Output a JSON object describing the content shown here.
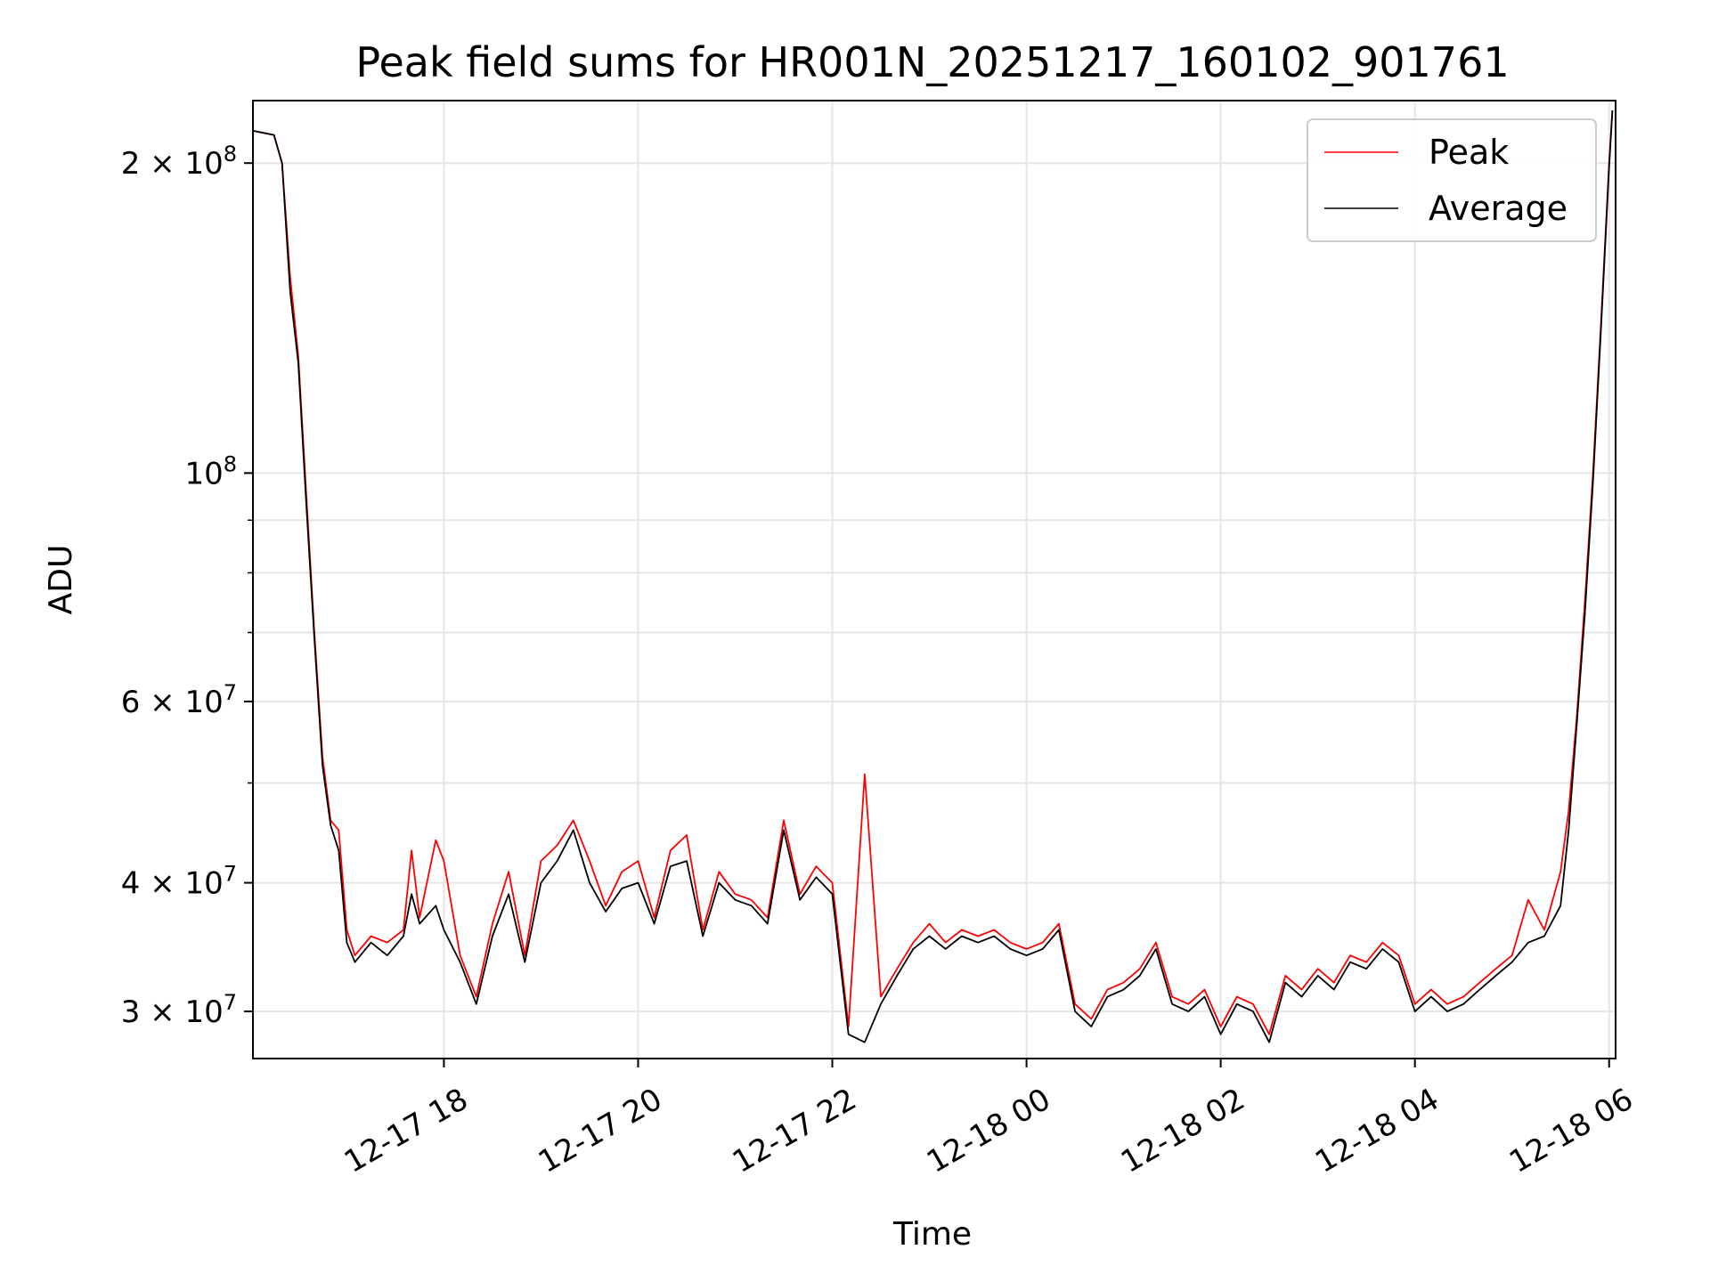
{
  "chart_data": {
    "type": "line",
    "title": "Peak field sums for HR001N_20251217_160102_901761",
    "xlabel": "Time",
    "ylabel": "ADU",
    "yscale": "log",
    "ylim": [
      27000000,
      230000000
    ],
    "xlim": [
      "12-17 16:02",
      "12-18 06:04"
    ],
    "grid": true,
    "legend": {
      "placement": "upper right",
      "entries": [
        "Peak",
        "Average"
      ]
    },
    "x_ticks": [
      {
        "value": "12-17 18:00",
        "label": "12-17 18"
      },
      {
        "value": "12-17 20:00",
        "label": "12-17 20"
      },
      {
        "value": "12-17 22:00",
        "label": "12-17 22"
      },
      {
        "value": "12-18 00:00",
        "label": "12-18 00"
      },
      {
        "value": "12-18 02:00",
        "label": "12-18 02"
      },
      {
        "value": "12-18 04:00",
        "label": "12-18 04"
      },
      {
        "value": "12-18 06:00",
        "label": "12-18 06"
      }
    ],
    "y_ticks": [
      {
        "value": 30000000,
        "label": "3 × 10⁷",
        "base": "3 × 10",
        "exp": "7"
      },
      {
        "value": 40000000,
        "label": "4 × 10⁷",
        "base": "4 × 10",
        "exp": "7"
      },
      {
        "value": 60000000,
        "label": "6 × 10⁷",
        "base": "6 × 10",
        "exp": "7"
      },
      {
        "value": 100000000,
        "label": "10⁸",
        "base": "10",
        "exp": "8"
      },
      {
        "value": 200000000,
        "label": "2 × 10⁸",
        "base": "2 × 10",
        "exp": "8"
      }
    ],
    "y_minor_ticks": [
      50000000,
      70000000,
      80000000,
      90000000
    ],
    "series": [
      {
        "name": "Peak",
        "color": "#ff0000",
        "points": [
          [
            "12-17 16:02",
            215000000
          ],
          [
            "12-17 16:15",
            213000000
          ],
          [
            "12-17 16:20",
            200000000
          ],
          [
            "12-17 16:25",
            155000000
          ],
          [
            "12-17 16:30",
            130000000
          ],
          [
            "12-17 16:35",
            95000000
          ],
          [
            "12-17 16:40",
            70000000
          ],
          [
            "12-17 16:45",
            53000000
          ],
          [
            "12-17 16:50",
            46000000
          ],
          [
            "12-17 16:55",
            45000000
          ],
          [
            "12-17 17:00",
            36000000
          ],
          [
            "12-17 17:05",
            34000000
          ],
          [
            "12-17 17:15",
            35500000
          ],
          [
            "12-17 17:25",
            35000000
          ],
          [
            "12-17 17:35",
            36000000
          ],
          [
            "12-17 17:40",
            43000000
          ],
          [
            "12-17 17:45",
            37000000
          ],
          [
            "12-17 17:55",
            44000000
          ],
          [
            "12-17 18:00",
            42000000
          ],
          [
            "12-17 18:10",
            34000000
          ],
          [
            "12-17 18:20",
            31000000
          ],
          [
            "12-17 18:30",
            36500000
          ],
          [
            "12-17 18:40",
            41000000
          ],
          [
            "12-17 18:50",
            34000000
          ],
          [
            "12-17 19:00",
            42000000
          ],
          [
            "12-17 19:10",
            43500000
          ],
          [
            "12-17 19:20",
            46000000
          ],
          [
            "12-17 19:30",
            42000000
          ],
          [
            "12-17 19:40",
            38000000
          ],
          [
            "12-17 19:50",
            41000000
          ],
          [
            "12-17 20:00",
            42000000
          ],
          [
            "12-17 20:10",
            37000000
          ],
          [
            "12-17 20:20",
            43000000
          ],
          [
            "12-17 20:30",
            44500000
          ],
          [
            "12-17 20:40",
            36000000
          ],
          [
            "12-17 20:50",
            41000000
          ],
          [
            "12-17 21:00",
            39000000
          ],
          [
            "12-17 21:10",
            38500000
          ],
          [
            "12-17 21:20",
            37000000
          ],
          [
            "12-17 21:30",
            46000000
          ],
          [
            "12-17 21:40",
            39000000
          ],
          [
            "12-17 21:50",
            41500000
          ],
          [
            "12-17 22:00",
            40000000
          ],
          [
            "12-17 22:10",
            29000000
          ],
          [
            "12-17 22:20",
            51000000
          ],
          [
            "12-17 22:30",
            31000000
          ],
          [
            "12-17 22:40",
            33000000
          ],
          [
            "12-17 22:50",
            35000000
          ],
          [
            "12-17 23:00",
            36500000
          ],
          [
            "12-17 23:10",
            35000000
          ],
          [
            "12-17 23:20",
            36000000
          ],
          [
            "12-17 23:30",
            35500000
          ],
          [
            "12-17 23:40",
            36000000
          ],
          [
            "12-17 23:50",
            35000000
          ],
          [
            "12-18 00:00",
            34500000
          ],
          [
            "12-18 00:10",
            35000000
          ],
          [
            "12-18 00:20",
            36500000
          ],
          [
            "12-18 00:30",
            30500000
          ],
          [
            "12-18 00:40",
            29500000
          ],
          [
            "12-18 00:50",
            31500000
          ],
          [
            "12-18 01:00",
            32000000
          ],
          [
            "12-18 01:10",
            33000000
          ],
          [
            "12-18 01:20",
            35000000
          ],
          [
            "12-18 01:30",
            31000000
          ],
          [
            "12-18 01:40",
            30500000
          ],
          [
            "12-18 01:50",
            31500000
          ],
          [
            "12-18 02:00",
            29000000
          ],
          [
            "12-18 02:10",
            31000000
          ],
          [
            "12-18 02:20",
            30500000
          ],
          [
            "12-18 02:30",
            28500000
          ],
          [
            "12-18 02:40",
            32500000
          ],
          [
            "12-18 02:50",
            31500000
          ],
          [
            "12-18 03:00",
            33000000
          ],
          [
            "12-18 03:10",
            32000000
          ],
          [
            "12-18 03:20",
            34000000
          ],
          [
            "12-18 03:30",
            33500000
          ],
          [
            "12-18 03:40",
            35000000
          ],
          [
            "12-18 03:50",
            34000000
          ],
          [
            "12-18 04:00",
            30500000
          ],
          [
            "12-18 04:10",
            31500000
          ],
          [
            "12-18 04:20",
            30500000
          ],
          [
            "12-18 04:30",
            31000000
          ],
          [
            "12-18 04:40",
            32000000
          ],
          [
            "12-18 04:50",
            33000000
          ],
          [
            "12-18 05:00",
            34000000
          ],
          [
            "12-18 05:10",
            38500000
          ],
          [
            "12-18 05:20",
            36000000
          ],
          [
            "12-18 05:30",
            41000000
          ],
          [
            "12-18 05:35",
            47000000
          ],
          [
            "12-18 05:40",
            58000000
          ],
          [
            "12-18 05:45",
            75000000
          ],
          [
            "12-18 05:50",
            100000000
          ],
          [
            "12-18 05:55",
            140000000
          ],
          [
            "12-18 06:00",
            200000000
          ],
          [
            "12-18 06:02",
            225000000
          ]
        ]
      },
      {
        "name": "Average",
        "color": "#000000",
        "points": [
          [
            "12-17 16:02",
            215000000
          ],
          [
            "12-17 16:15",
            213000000
          ],
          [
            "12-17 16:20",
            200000000
          ],
          [
            "12-17 16:25",
            150000000
          ],
          [
            "12-17 16:30",
            128000000
          ],
          [
            "12-17 16:35",
            93000000
          ],
          [
            "12-17 16:40",
            69000000
          ],
          [
            "12-17 16:45",
            52000000
          ],
          [
            "12-17 16:50",
            45500000
          ],
          [
            "12-17 16:55",
            43000000
          ],
          [
            "12-17 17:00",
            35000000
          ],
          [
            "12-17 17:05",
            33500000
          ],
          [
            "12-17 17:15",
            35000000
          ],
          [
            "12-17 17:25",
            34000000
          ],
          [
            "12-17 17:35",
            35500000
          ],
          [
            "12-17 17:40",
            39000000
          ],
          [
            "12-17 17:45",
            36500000
          ],
          [
            "12-17 17:55",
            38000000
          ],
          [
            "12-17 18:00",
            36000000
          ],
          [
            "12-17 18:10",
            33500000
          ],
          [
            "12-17 18:20",
            30500000
          ],
          [
            "12-17 18:30",
            35500000
          ],
          [
            "12-17 18:40",
            39000000
          ],
          [
            "12-17 18:50",
            33500000
          ],
          [
            "12-17 19:00",
            40000000
          ],
          [
            "12-17 19:10",
            42000000
          ],
          [
            "12-17 19:20",
            45000000
          ],
          [
            "12-17 19:30",
            40000000
          ],
          [
            "12-17 19:40",
            37500000
          ],
          [
            "12-17 19:50",
            39500000
          ],
          [
            "12-17 20:00",
            40000000
          ],
          [
            "12-17 20:10",
            36500000
          ],
          [
            "12-17 20:20",
            41500000
          ],
          [
            "12-17 20:30",
            42000000
          ],
          [
            "12-17 20:40",
            35500000
          ],
          [
            "12-17 20:50",
            40000000
          ],
          [
            "12-17 21:00",
            38500000
          ],
          [
            "12-17 21:10",
            38000000
          ],
          [
            "12-17 21:20",
            36500000
          ],
          [
            "12-17 21:30",
            45000000
          ],
          [
            "12-17 21:40",
            38500000
          ],
          [
            "12-17 21:50",
            40500000
          ],
          [
            "12-17 22:00",
            39000000
          ],
          [
            "12-17 22:10",
            28500000
          ],
          [
            "12-17 22:20",
            28000000
          ],
          [
            "12-17 22:30",
            30500000
          ],
          [
            "12-17 22:40",
            32500000
          ],
          [
            "12-17 22:50",
            34500000
          ],
          [
            "12-17 23:00",
            35500000
          ],
          [
            "12-17 23:10",
            34500000
          ],
          [
            "12-17 23:20",
            35500000
          ],
          [
            "12-17 23:30",
            35000000
          ],
          [
            "12-17 23:40",
            35500000
          ],
          [
            "12-17 23:50",
            34500000
          ],
          [
            "12-18 00:00",
            34000000
          ],
          [
            "12-18 00:10",
            34500000
          ],
          [
            "12-18 00:20",
            36000000
          ],
          [
            "12-18 00:30",
            30000000
          ],
          [
            "12-18 00:40",
            29000000
          ],
          [
            "12-18 00:50",
            31000000
          ],
          [
            "12-18 01:00",
            31500000
          ],
          [
            "12-18 01:10",
            32500000
          ],
          [
            "12-18 01:20",
            34500000
          ],
          [
            "12-18 01:30",
            30500000
          ],
          [
            "12-18 01:40",
            30000000
          ],
          [
            "12-18 01:50",
            31000000
          ],
          [
            "12-18 02:00",
            28500000
          ],
          [
            "12-18 02:10",
            30500000
          ],
          [
            "12-18 02:20",
            30000000
          ],
          [
            "12-18 02:30",
            28000000
          ],
          [
            "12-18 02:40",
            32000000
          ],
          [
            "12-18 02:50",
            31000000
          ],
          [
            "12-18 03:00",
            32500000
          ],
          [
            "12-18 03:10",
            31500000
          ],
          [
            "12-18 03:20",
            33500000
          ],
          [
            "12-18 03:30",
            33000000
          ],
          [
            "12-18 03:40",
            34500000
          ],
          [
            "12-18 03:50",
            33500000
          ],
          [
            "12-18 04:00",
            30000000
          ],
          [
            "12-18 04:10",
            31000000
          ],
          [
            "12-18 04:20",
            30000000
          ],
          [
            "12-18 04:30",
            30500000
          ],
          [
            "12-18 04:40",
            31500000
          ],
          [
            "12-18 04:50",
            32500000
          ],
          [
            "12-18 05:00",
            33500000
          ],
          [
            "12-18 05:10",
            35000000
          ],
          [
            "12-18 05:20",
            35500000
          ],
          [
            "12-18 05:30",
            38000000
          ],
          [
            "12-18 05:35",
            45000000
          ],
          [
            "12-18 05:40",
            57000000
          ],
          [
            "12-18 05:45",
            73000000
          ],
          [
            "12-18 05:50",
            98000000
          ],
          [
            "12-18 05:55",
            138000000
          ],
          [
            "12-18 06:00",
            198000000
          ],
          [
            "12-18 06:02",
            225000000
          ]
        ]
      }
    ]
  }
}
